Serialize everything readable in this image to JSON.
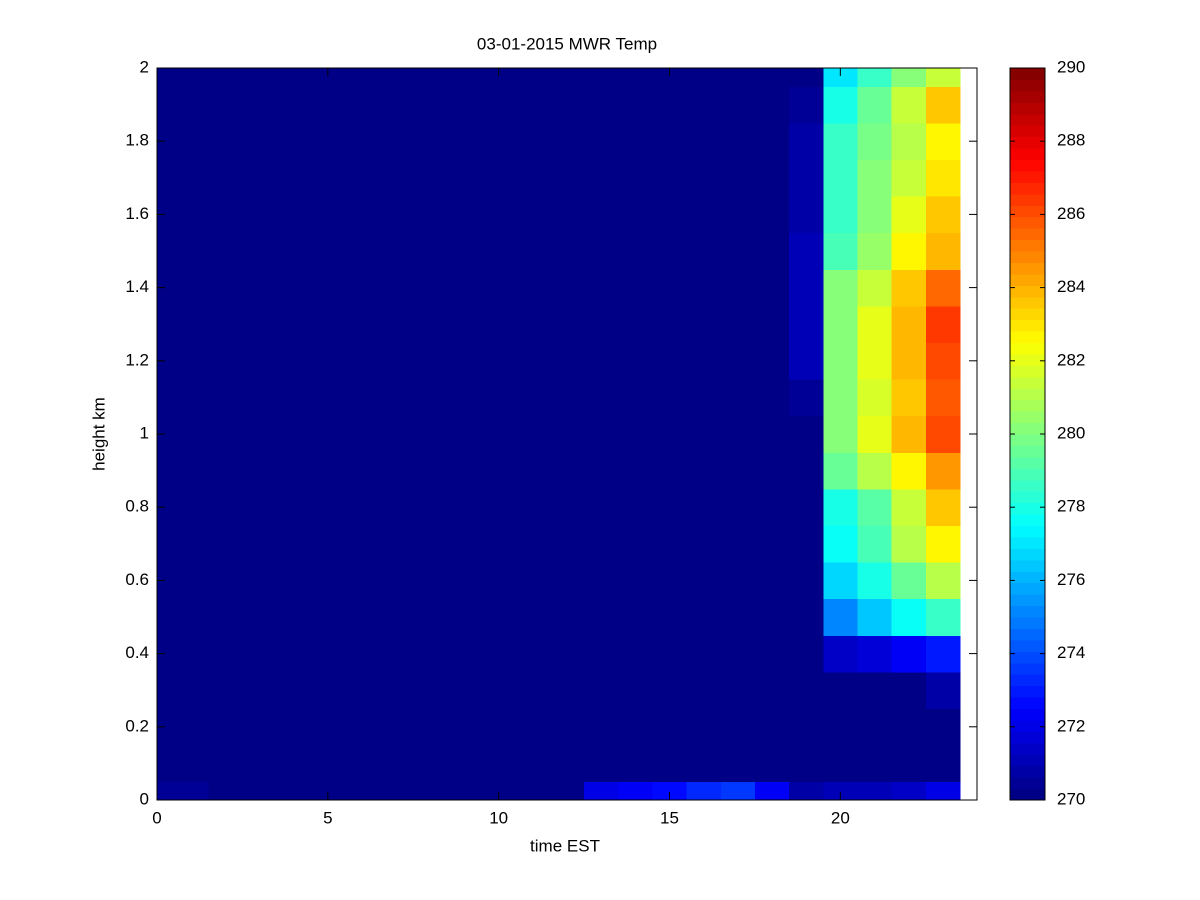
{
  "chart_data": {
    "type": "heatmap",
    "title": "03-01-2015 MWR Temp",
    "x_label": "time EST",
    "y_label": "height km",
    "x": [
      0,
      1,
      2,
      3,
      4,
      5,
      6,
      7,
      8,
      9,
      10,
      11,
      12,
      13,
      14,
      15,
      16,
      17,
      18,
      19,
      20,
      21,
      22,
      23
    ],
    "y": [
      0,
      0.1,
      0.2,
      0.3,
      0.4,
      0.5,
      0.6,
      0.7,
      0.8,
      0.9,
      1,
      1.1,
      1.2,
      1.3,
      1.4,
      1.5,
      1.6,
      1.7,
      1.8,
      1.9,
      2
    ],
    "z": [
      [
        270.5,
        270.5,
        270,
        270,
        270,
        270,
        270,
        270,
        270,
        270,
        270,
        270,
        270,
        272,
        272.3,
        272.8,
        273.3,
        273.5,
        272.3,
        270.8,
        271,
        271,
        271.3,
        272
      ],
      [
        270,
        270,
        270,
        270,
        270,
        270,
        270,
        270,
        270,
        270,
        270,
        270,
        270,
        270,
        270,
        270,
        270.3,
        270.3,
        270,
        270,
        270,
        270,
        270,
        270
      ],
      [
        270,
        270,
        270,
        270,
        270,
        270,
        270,
        270,
        270,
        270,
        270,
        270,
        270,
        270,
        270,
        270,
        270,
        270,
        270,
        270,
        270,
        270,
        270,
        270
      ],
      [
        270,
        270,
        270,
        270,
        270,
        270,
        270,
        270,
        270,
        270,
        270,
        270,
        270,
        270,
        270,
        270,
        270,
        270,
        270,
        270,
        270,
        270,
        270,
        270.7
      ],
      [
        270,
        270,
        270,
        270,
        270,
        270,
        270,
        270,
        270,
        270,
        270,
        270,
        270,
        270,
        270,
        270,
        270,
        270,
        270,
        270,
        271.5,
        271.8,
        272.3,
        273
      ],
      [
        270,
        270,
        270,
        270,
        270,
        270,
        270,
        270,
        270,
        270,
        270,
        270,
        270,
        270,
        270,
        270,
        270,
        270,
        270,
        270,
        275.3,
        276.5,
        277.5,
        278.5
      ],
      [
        270,
        270,
        270,
        270,
        270,
        270,
        270,
        270,
        270,
        270,
        270,
        270,
        270,
        270,
        270,
        270,
        270,
        270,
        270,
        270,
        276.8,
        278,
        279.5,
        281
      ],
      [
        270,
        270,
        270,
        270,
        270,
        270,
        270,
        270,
        270,
        270,
        270,
        270,
        270,
        270,
        270,
        270,
        270,
        270,
        270,
        270,
        277.5,
        279,
        281,
        282.5
      ],
      [
        270,
        270,
        270,
        270,
        270,
        270,
        270,
        270,
        270,
        270,
        270,
        270,
        270,
        270,
        270,
        270,
        270,
        270,
        270,
        270,
        278,
        279.3,
        281.3,
        283.5
      ],
      [
        270,
        270,
        270,
        270,
        270,
        270,
        270,
        270,
        270,
        270,
        270,
        270,
        270,
        270,
        270,
        270,
        270,
        270,
        270,
        270,
        279.5,
        281,
        282.7,
        284.5
      ],
      [
        270,
        270,
        270,
        270,
        270,
        270,
        270,
        270,
        270,
        270,
        270,
        270,
        270,
        270,
        270,
        270,
        270,
        270,
        270,
        270,
        280.3,
        282,
        284,
        286
      ],
      [
        270,
        270,
        270,
        270,
        270,
        270,
        270,
        270,
        270,
        270,
        270,
        270,
        270,
        270,
        270,
        270,
        270,
        270,
        270,
        270.6,
        280.3,
        281.8,
        283.5,
        285.7
      ],
      [
        270,
        270,
        270,
        270,
        270,
        270,
        270,
        270,
        270,
        270,
        270,
        270,
        270,
        270,
        270,
        270,
        270,
        270,
        270,
        271,
        280,
        282,
        283.8,
        286
      ],
      [
        270,
        270,
        270,
        270,
        270,
        270,
        270,
        270,
        270,
        270,
        270,
        270,
        270,
        270,
        270,
        270,
        270,
        270,
        270,
        271,
        280,
        282,
        284,
        286.5
      ],
      [
        270,
        270,
        270,
        270,
        270,
        270,
        270,
        270,
        270,
        270,
        270,
        270,
        270,
        270,
        270,
        270,
        270,
        270,
        270,
        271,
        280,
        281.5,
        283.5,
        285.5
      ],
      [
        270,
        270,
        270,
        270,
        270,
        270,
        270,
        270,
        270,
        270,
        270,
        270,
        270,
        270,
        270,
        270,
        270,
        270,
        270,
        271,
        279,
        280.5,
        282.5,
        284
      ],
      [
        270,
        270,
        270,
        270,
        270,
        270,
        270,
        270,
        270,
        270,
        270,
        270,
        270,
        270,
        270,
        270,
        270,
        270,
        270,
        270.8,
        278.5,
        280,
        282,
        283.5
      ],
      [
        270,
        270,
        270,
        270,
        270,
        270,
        270,
        270,
        270,
        270,
        270,
        270,
        270,
        270,
        270,
        270,
        270,
        270,
        270,
        270.8,
        278.5,
        280,
        281.5,
        283
      ],
      [
        270,
        270,
        270,
        270,
        270,
        270,
        270,
        270,
        270,
        270,
        270,
        270,
        270,
        270,
        270,
        270,
        270,
        270,
        270,
        270.7,
        278.5,
        279.8,
        281,
        282.5
      ],
      [
        270,
        270,
        270,
        270,
        270,
        270,
        270,
        270,
        270,
        270,
        270,
        270,
        270,
        270,
        270,
        270,
        270,
        270,
        270,
        270.5,
        278,
        279.5,
        281.5,
        283.5
      ],
      [
        270,
        270,
        270,
        270,
        270,
        270,
        270,
        270,
        270,
        270,
        270,
        270,
        270,
        270,
        270,
        270,
        270,
        270,
        270,
        270,
        277,
        278.5,
        280.3,
        281.5
      ]
    ],
    "xlim": [
      0,
      24
    ],
    "xticks": [
      0,
      5,
      10,
      15,
      20
    ],
    "ylim": [
      0,
      2
    ],
    "yticks": [
      0,
      0.2,
      0.4,
      0.6,
      0.8,
      1,
      1.2,
      1.4,
      1.6,
      1.8,
      2
    ],
    "colormap": "jet",
    "clim": [
      270,
      290
    ],
    "cticks": [
      270,
      272,
      274,
      276,
      278,
      280,
      282,
      284,
      286,
      288,
      290
    ]
  }
}
